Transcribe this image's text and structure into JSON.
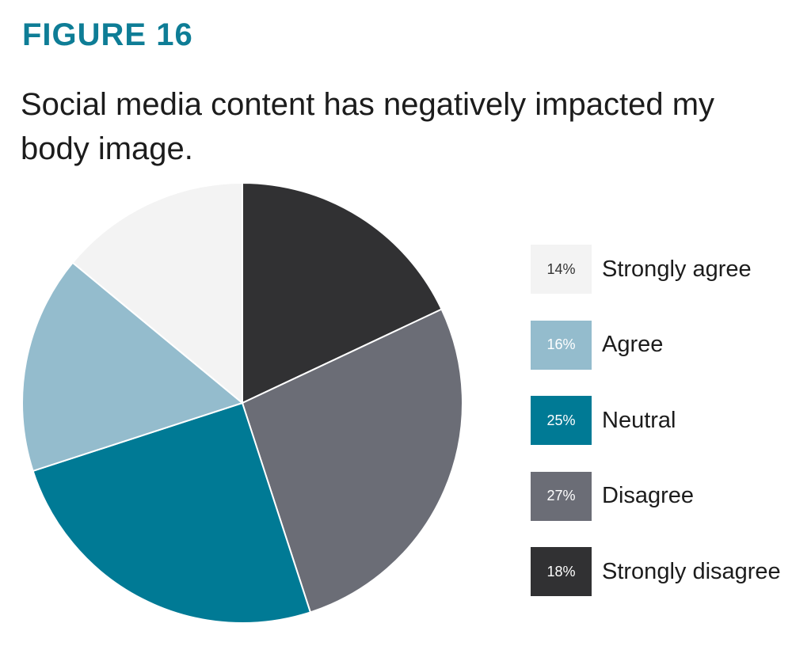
{
  "figure_label": "FIGURE 16",
  "chart_data": {
    "type": "pie",
    "title": "Social media content has negatively impacted my body image.",
    "legend_position": "right",
    "slices": [
      {
        "label": "Strongly agree",
        "value": 14,
        "value_label": "14%",
        "color": "#f3f3f3",
        "text_color": "#333333"
      },
      {
        "label": "Agree",
        "value": 16,
        "value_label": "16%",
        "color": "#94bccd",
        "text_color": "#ffffff"
      },
      {
        "label": "Neutral",
        "value": 25,
        "value_label": "25%",
        "color": "#007a95",
        "text_color": "#ffffff"
      },
      {
        "label": "Disagree",
        "value": 27,
        "value_label": "27%",
        "color": "#6b6d76",
        "text_color": "#ffffff"
      },
      {
        "label": "Strongly disagree",
        "value": 18,
        "value_label": "18%",
        "color": "#313133",
        "text_color": "#ffffff"
      }
    ],
    "draw_order_clockwise_from_top": [
      "Strongly disagree",
      "Disagree",
      "Neutral",
      "Agree",
      "Strongly agree"
    ]
  }
}
